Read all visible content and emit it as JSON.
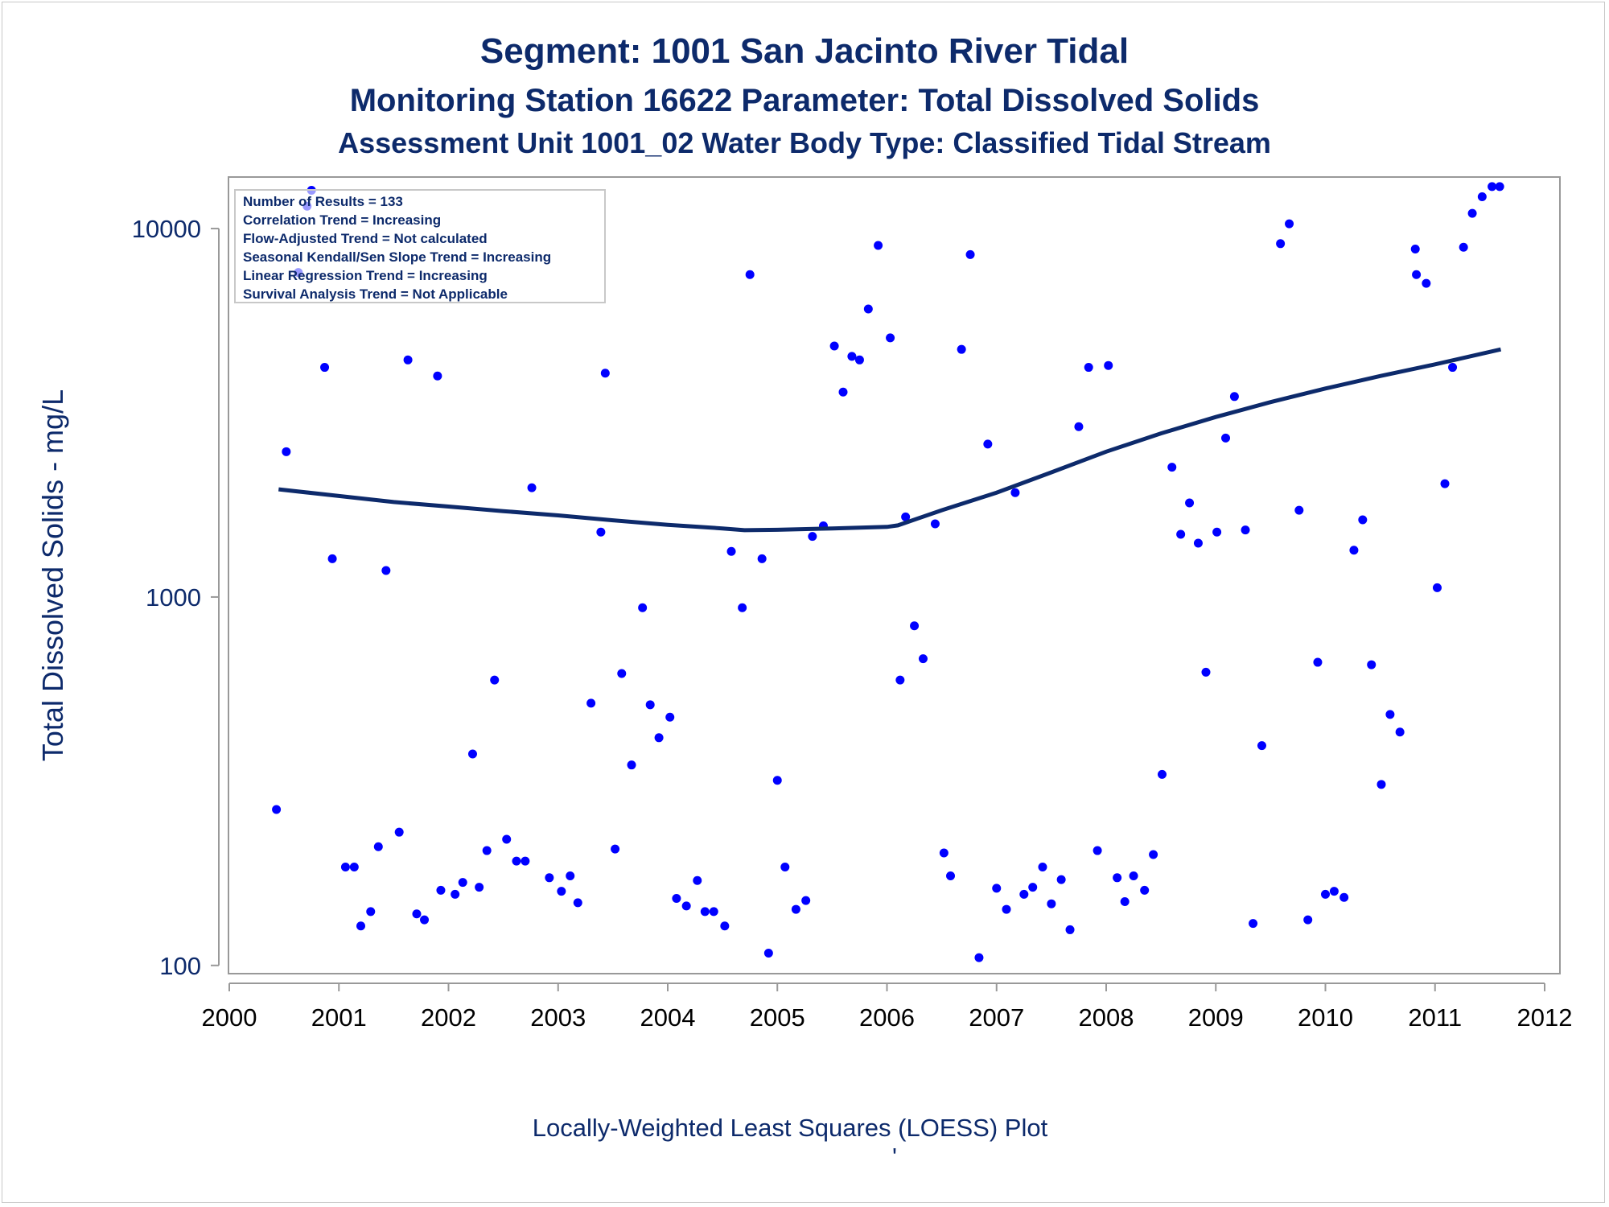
{
  "chart_data": {
    "type": "scatter",
    "title": "Segment: 1001  San Jacinto River Tidal",
    "subtitle": "Monitoring Station 16622 Parameter: Total Dissolved Solids",
    "subtitle2": "Assessment Unit 1001_02   Water Body Type: Classified Tidal Stream",
    "xlabel": "",
    "ylabel": "Total Dissolved Solids - mg/L",
    "footnote": "Locally-Weighted Least Squares (LOESS) Plot",
    "footnote_mark": "'",
    "y_scale": "log",
    "xlim": [
      2000,
      2012
    ],
    "ylim": [
      95,
      13800
    ],
    "x_ticks": [
      "2000",
      "2001",
      "2002",
      "2003",
      "2004",
      "2005",
      "2006",
      "2007",
      "2008",
      "2009",
      "2010",
      "2011",
      "2012"
    ],
    "y_ticks": [
      "100",
      "1000",
      "10000"
    ],
    "grid": false,
    "point_color": "#0000ff",
    "line_color": "#0d2a6b",
    "inset": [
      "Number of Results = 133",
      "Correlation Trend = Increasing",
      "Flow-Adjusted Trend = Not calculated",
      "Seasonal Kendall/Sen Slope Trend = Increasing",
      "Linear Regression Trend = Increasing",
      "Survival Analysis Trend = Not Applicable"
    ],
    "points": [
      [
        2000.43,
        265
      ],
      [
        2000.52,
        2480
      ],
      [
        2000.63,
        7600
      ],
      [
        2000.71,
        11500
      ],
      [
        2000.75,
        12700
      ],
      [
        2000.87,
        4200
      ],
      [
        2000.94,
        1270
      ],
      [
        2001.06,
        185
      ],
      [
        2001.14,
        185
      ],
      [
        2001.2,
        128
      ],
      [
        2001.29,
        140
      ],
      [
        2001.36,
        210
      ],
      [
        2001.43,
        1180
      ],
      [
        2001.55,
        230
      ],
      [
        2001.63,
        4400
      ],
      [
        2001.71,
        138
      ],
      [
        2001.78,
        133
      ],
      [
        2001.9,
        3980
      ],
      [
        2001.93,
        160
      ],
      [
        2002.06,
        156
      ],
      [
        2002.13,
        168
      ],
      [
        2002.22,
        375
      ],
      [
        2002.28,
        163
      ],
      [
        2002.35,
        205
      ],
      [
        2002.42,
        595
      ],
      [
        2002.53,
        220
      ],
      [
        2002.62,
        192
      ],
      [
        2002.7,
        192
      ],
      [
        2002.76,
        1980
      ],
      [
        2002.92,
        173
      ],
      [
        2003.03,
        159
      ],
      [
        2003.11,
        175
      ],
      [
        2003.18,
        148
      ],
      [
        2003.3,
        515
      ],
      [
        2003.39,
        1500
      ],
      [
        2003.43,
        4050
      ],
      [
        2003.52,
        207
      ],
      [
        2003.58,
        620
      ],
      [
        2003.67,
        350
      ],
      [
        2003.77,
        935
      ],
      [
        2003.84,
        510
      ],
      [
        2003.92,
        415
      ],
      [
        2004.02,
        472
      ],
      [
        2004.08,
        152
      ],
      [
        2004.17,
        145
      ],
      [
        2004.27,
        170
      ],
      [
        2004.34,
        140
      ],
      [
        2004.42,
        140
      ],
      [
        2004.52,
        128
      ],
      [
        2004.58,
        1330
      ],
      [
        2004.68,
        935
      ],
      [
        2004.75,
        7500
      ],
      [
        2004.86,
        1270
      ],
      [
        2004.92,
        108
      ],
      [
        2005.0,
        318
      ],
      [
        2005.07,
        185
      ],
      [
        2005.17,
        142
      ],
      [
        2005.26,
        150
      ],
      [
        2005.32,
        1460
      ],
      [
        2005.42,
        1560
      ],
      [
        2005.52,
        4800
      ],
      [
        2005.6,
        3600
      ],
      [
        2005.68,
        4500
      ],
      [
        2005.75,
        4400
      ],
      [
        2005.83,
        6050
      ],
      [
        2005.92,
        9000
      ],
      [
        2006.03,
        5050
      ],
      [
        2006.12,
        595
      ],
      [
        2006.17,
        1650
      ],
      [
        2006.25,
        835
      ],
      [
        2006.33,
        680
      ],
      [
        2006.44,
        1580
      ],
      [
        2006.52,
        202
      ],
      [
        2006.58,
        175
      ],
      [
        2006.68,
        4700
      ],
      [
        2006.76,
        8500
      ],
      [
        2006.84,
        105
      ],
      [
        2006.92,
        2600
      ],
      [
        2007.0,
        162
      ],
      [
        2007.09,
        142
      ],
      [
        2007.17,
        1920
      ],
      [
        2007.25,
        156
      ],
      [
        2007.33,
        163
      ],
      [
        2007.42,
        185
      ],
      [
        2007.5,
        147
      ],
      [
        2007.59,
        171
      ],
      [
        2007.67,
        125
      ],
      [
        2007.75,
        2900
      ],
      [
        2007.84,
        4200
      ],
      [
        2007.92,
        205
      ],
      [
        2008.02,
        4250
      ],
      [
        2008.1,
        173
      ],
      [
        2008.17,
        149
      ],
      [
        2008.25,
        175
      ],
      [
        2008.35,
        160
      ],
      [
        2008.43,
        200
      ],
      [
        2008.51,
        330
      ],
      [
        2008.6,
        2250
      ],
      [
        2008.68,
        1480
      ],
      [
        2008.76,
        1800
      ],
      [
        2008.84,
        1400
      ],
      [
        2008.91,
        625
      ],
      [
        2009.01,
        1500
      ],
      [
        2009.09,
        2700
      ],
      [
        2009.17,
        3500
      ],
      [
        2009.27,
        1520
      ],
      [
        2009.34,
        130
      ],
      [
        2009.42,
        395
      ],
      [
        2009.59,
        9100
      ],
      [
        2009.67,
        10300
      ],
      [
        2009.76,
        1720
      ],
      [
        2009.84,
        133
      ],
      [
        2009.93,
        665
      ],
      [
        2010.0,
        156
      ],
      [
        2010.08,
        159
      ],
      [
        2010.17,
        153
      ],
      [
        2010.26,
        1340
      ],
      [
        2010.34,
        1620
      ],
      [
        2010.42,
        655
      ],
      [
        2010.51,
        310
      ],
      [
        2010.59,
        480
      ],
      [
        2010.68,
        430
      ],
      [
        2010.82,
        8800
      ],
      [
        2010.83,
        7500
      ],
      [
        2010.92,
        7100
      ],
      [
        2011.02,
        1060
      ],
      [
        2011.09,
        2030
      ],
      [
        2011.16,
        4200
      ],
      [
        2011.26,
        8900
      ],
      [
        2011.34,
        11000
      ],
      [
        2011.43,
        12200
      ],
      [
        2011.52,
        13000
      ],
      [
        2011.59,
        13000
      ]
    ],
    "loess": [
      [
        2000.45,
        1960
      ],
      [
        2001.0,
        1880
      ],
      [
        2001.5,
        1810
      ],
      [
        2002.0,
        1760
      ],
      [
        2002.5,
        1710
      ],
      [
        2003.0,
        1665
      ],
      [
        2003.5,
        1615
      ],
      [
        2004.0,
        1570
      ],
      [
        2004.5,
        1535
      ],
      [
        2004.7,
        1518
      ],
      [
        2005.0,
        1522
      ],
      [
        2005.5,
        1535
      ],
      [
        2006.0,
        1550
      ],
      [
        2006.1,
        1565
      ],
      [
        2006.5,
        1720
      ],
      [
        2007.0,
        1920
      ],
      [
        2007.5,
        2180
      ],
      [
        2008.0,
        2480
      ],
      [
        2008.5,
        2780
      ],
      [
        2009.0,
        3080
      ],
      [
        2009.5,
        3380
      ],
      [
        2010.0,
        3680
      ],
      [
        2010.5,
        3980
      ],
      [
        2011.0,
        4280
      ],
      [
        2011.6,
        4700
      ]
    ]
  }
}
